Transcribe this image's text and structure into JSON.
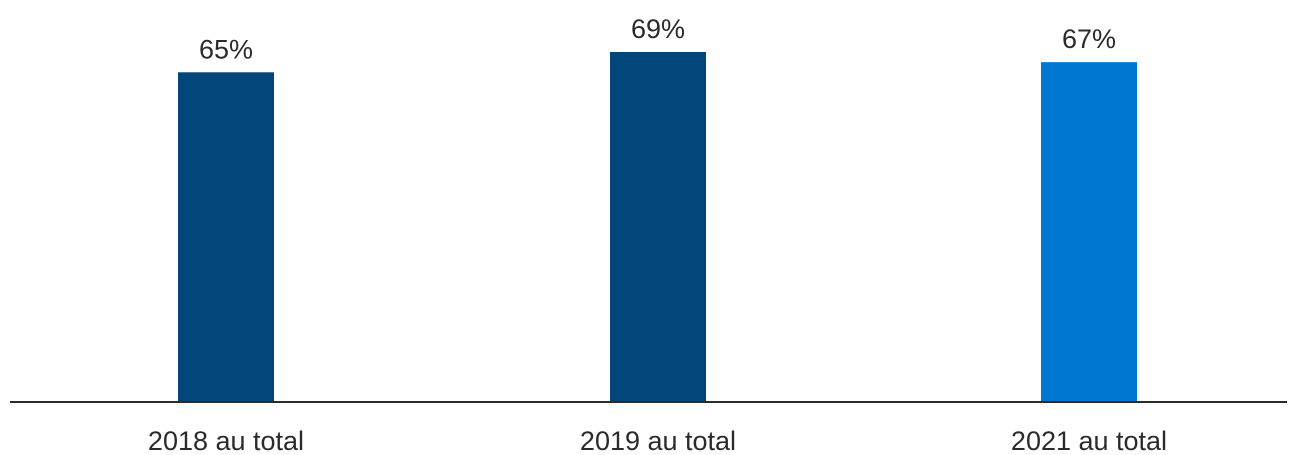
{
  "chart_data": {
    "type": "bar",
    "title": "",
    "xlabel": "",
    "ylabel": "",
    "categories": [
      "2018 au total",
      "2019 au total",
      "2021 au total"
    ],
    "values": [
      65,
      69,
      67
    ],
    "value_labels": [
      "65%",
      "69%",
      "67%"
    ],
    "unit": "%",
    "bar_colors": [
      "#03467a",
      "#03467a",
      "#0078d2"
    ],
    "axis_color": "#2b2b2b",
    "ylim": [
      0,
      75
    ],
    "grid": false,
    "legend": "none"
  }
}
